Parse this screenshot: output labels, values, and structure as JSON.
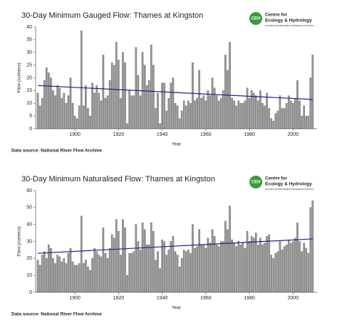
{
  "chart_data": [
    {
      "type": "bar",
      "title": "30-Day Minimum Gauged Flow: Thames at Kingston",
      "x": [
        1883,
        1884,
        1885,
        1886,
        1887,
        1888,
        1889,
        1890,
        1891,
        1892,
        1893,
        1894,
        1895,
        1896,
        1897,
        1898,
        1899,
        1900,
        1901,
        1902,
        1903,
        1904,
        1905,
        1906,
        1907,
        1908,
        1909,
        1910,
        1911,
        1912,
        1913,
        1914,
        1915,
        1916,
        1917,
        1918,
        1919,
        1920,
        1921,
        1922,
        1923,
        1924,
        1925,
        1926,
        1927,
        1928,
        1929,
        1930,
        1931,
        1932,
        1933,
        1934,
        1935,
        1936,
        1937,
        1938,
        1939,
        1940,
        1941,
        1942,
        1943,
        1944,
        1945,
        1946,
        1947,
        1948,
        1949,
        1950,
        1951,
        1952,
        1953,
        1954,
        1955,
        1956,
        1957,
        1958,
        1959,
        1960,
        1961,
        1962,
        1963,
        1964,
        1965,
        1966,
        1967,
        1968,
        1969,
        1970,
        1971,
        1972,
        1973,
        1974,
        1975,
        1976,
        1977,
        1978,
        1979,
        1980,
        1981,
        1982,
        1983,
        1984,
        1985,
        1986,
        1987,
        1988,
        1989,
        1990,
        1991,
        1992,
        1993,
        1994,
        1995,
        1996,
        1997,
        1998,
        1999,
        2000,
        2001,
        2002,
        2003,
        2004,
        2005,
        2006,
        2007,
        2008,
        2009
      ],
      "values": [
        14,
        9,
        12,
        19,
        24,
        22,
        20,
        15,
        13,
        17,
        16,
        12,
        14,
        10,
        13,
        20,
        10,
        5,
        4,
        9,
        38.5,
        9,
        17,
        8,
        5,
        18,
        14,
        17,
        14,
        11,
        29,
        12,
        13,
        19,
        26,
        25,
        34,
        27,
        12,
        30,
        26,
        2,
        15,
        13,
        13,
        32,
        21,
        13,
        30,
        25,
        17,
        19,
        33,
        25,
        8,
        14,
        2,
        18,
        18,
        7,
        12,
        18,
        20,
        10,
        9,
        4,
        7,
        11,
        9,
        11,
        10,
        26,
        11,
        12,
        23,
        12,
        13,
        11,
        15,
        13,
        20,
        16,
        13,
        11,
        12,
        15,
        29,
        23,
        34,
        12,
        11,
        9,
        11,
        10,
        10,
        11,
        16,
        12,
        15,
        14,
        13,
        11,
        15,
        10,
        9,
        14,
        8,
        4,
        3,
        6,
        7,
        13,
        8,
        8,
        10,
        13,
        11,
        10,
        12,
        19,
        11,
        5,
        9,
        5,
        5,
        20,
        29
      ],
      "color": "#999999",
      "trend": {
        "x": [
          1883,
          2009
        ],
        "values": [
          17,
          11.5
        ],
        "color": "#1f1f8f"
      },
      "xlim": [
        1882,
        2011
      ],
      "xticks": [
        1900,
        1920,
        1940,
        1960,
        1980,
        2000
      ],
      "ylim": [
        0,
        40
      ],
      "yticks": [
        0,
        5,
        10,
        15,
        20,
        25,
        30,
        35,
        40
      ],
      "xlabel": "Year",
      "ylabel": "Flow (cumecs)",
      "source": "Data source: National River Flow Archive",
      "logo": {
        "mark": "CEH",
        "lines": [
          "Centre for",
          "Ecology & Hydrology"
        ],
        "sub": "NATURAL ENVIRONMENT RESEARCH COUNCIL"
      }
    },
    {
      "type": "bar",
      "title": "30-Day Minimum Naturalised Flow: Thames at Kingston",
      "x": [
        1883,
        1884,
        1885,
        1886,
        1887,
        1888,
        1889,
        1890,
        1891,
        1892,
        1893,
        1894,
        1895,
        1896,
        1897,
        1898,
        1899,
        1900,
        1901,
        1902,
        1903,
        1904,
        1905,
        1906,
        1907,
        1908,
        1909,
        1910,
        1911,
        1912,
        1913,
        1914,
        1915,
        1916,
        1917,
        1918,
        1919,
        1920,
        1921,
        1922,
        1923,
        1924,
        1925,
        1926,
        1927,
        1928,
        1929,
        1930,
        1931,
        1932,
        1933,
        1934,
        1935,
        1936,
        1937,
        1938,
        1939,
        1940,
        1941,
        1942,
        1943,
        1944,
        1945,
        1946,
        1947,
        1948,
        1949,
        1950,
        1951,
        1952,
        1953,
        1954,
        1955,
        1956,
        1957,
        1958,
        1959,
        1960,
        1961,
        1962,
        1963,
        1964,
        1965,
        1966,
        1967,
        1968,
        1969,
        1970,
        1971,
        1972,
        1973,
        1974,
        1975,
        1976,
        1977,
        1978,
        1979,
        1980,
        1981,
        1982,
        1983,
        1984,
        1985,
        1986,
        1987,
        1988,
        1989,
        1990,
        1991,
        1992,
        1993,
        1994,
        1995,
        1996,
        1997,
        1998,
        1999,
        2000,
        2001,
        2002,
        2003,
        2004,
        2005,
        2006,
        2007,
        2008,
        2009
      ],
      "values": [
        19,
        16,
        22,
        24,
        20,
        28,
        26,
        20,
        17,
        22,
        21,
        18,
        20,
        17,
        23,
        26,
        18,
        16,
        16,
        17,
        45,
        17,
        19,
        15,
        13,
        20,
        26,
        24,
        22,
        21,
        38,
        23,
        20,
        26,
        34,
        32,
        43,
        36,
        22,
        43,
        38,
        10,
        23,
        23,
        24,
        40,
        30,
        25,
        41,
        37,
        28,
        28,
        41,
        36,
        19,
        24,
        14,
        31,
        30,
        22,
        25,
        30,
        33,
        24,
        22,
        15,
        20,
        25,
        24,
        25,
        23,
        40,
        26,
        27,
        37,
        28,
        28,
        26,
        32,
        29,
        37,
        33,
        28,
        27,
        30,
        30,
        42,
        37,
        51,
        31,
        29,
        27,
        30,
        28,
        29,
        26,
        36,
        30,
        33,
        32,
        35,
        28,
        32,
        28,
        29,
        33,
        34,
        22,
        20,
        23,
        24,
        30,
        25,
        27,
        28,
        31,
        29,
        30,
        32,
        41,
        30,
        24,
        29,
        26,
        23,
        50,
        54
      ],
      "color": "#999999",
      "trend": {
        "x": [
          1883,
          2009
        ],
        "values": [
          23,
          31.5
        ],
        "color": "#1f1f8f"
      },
      "xlim": [
        1882,
        2011
      ],
      "xticks": [
        1900,
        1920,
        1940,
        1960,
        1980,
        2000
      ],
      "ylim": [
        0,
        60
      ],
      "yticks": [
        0,
        10,
        20,
        30,
        40,
        50,
        60
      ],
      "xlabel": "Year",
      "ylabel": "Flow (cumecs)",
      "source": "Data source: National River Flow Archive",
      "logo": {
        "mark": "CEH",
        "lines": [
          "Centre for",
          "Ecology & Hydrology"
        ],
        "sub": "NATURAL ENVIRONMENT RESEARCH COUNCIL"
      }
    }
  ]
}
